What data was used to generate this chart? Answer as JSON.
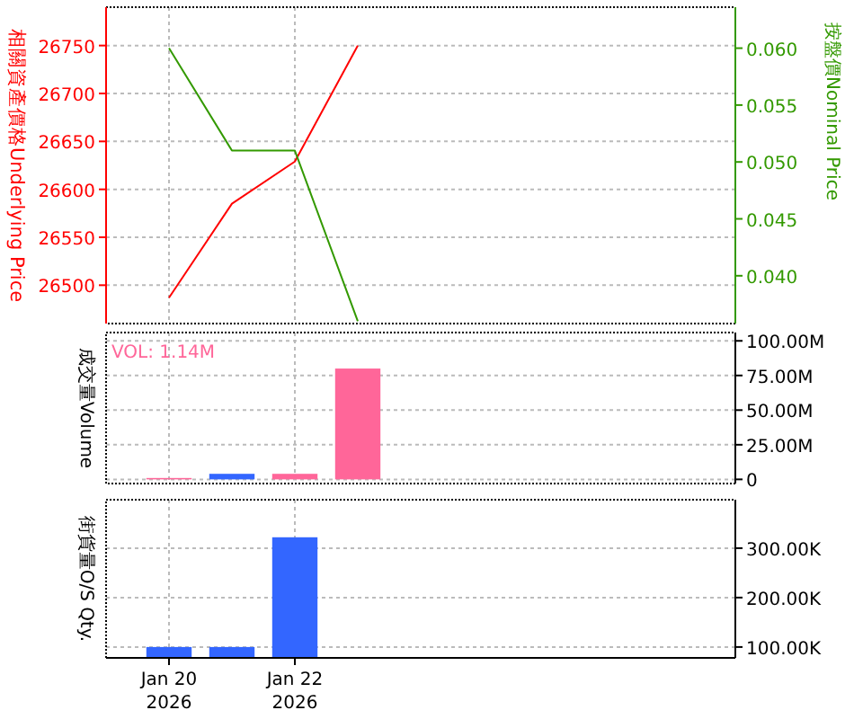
{
  "chart_data": [
    {
      "type": "line",
      "ylabel": "相關資產價格Underlying Price",
      "y2label": "按盤價Nominal Price",
      "x": [
        "2026-01-20",
        "2026-01-21",
        "2026-01-22",
        "2026-01-23"
      ],
      "series": [
        {
          "color": "#ff0000",
          "values": [
            26487,
            26585,
            26629,
            26750
          ]
        },
        {
          "color": "#339900",
          "axis": "y2",
          "values": [
            0.06,
            0.051,
            0.051,
            0.036
          ]
        }
      ],
      "xlim": [
        "2026-01-19",
        "2026-01-29"
      ],
      "xticks": [
        {
          "value": "2026-01-20",
          "label": null
        },
        {
          "value": "2026-01-22",
          "label": null
        }
      ],
      "ylim": [
        26460,
        26790
      ],
      "yticks": [
        26500,
        26550,
        26600,
        26650,
        26700,
        26750
      ],
      "y2lim": [
        0.0358,
        0.0636
      ],
      "y2ticks": [
        {
          "value": 0.04,
          "label": "0.040"
        },
        {
          "value": 0.045,
          "label": "0.045"
        },
        {
          "value": 0.05,
          "label": "0.050"
        },
        {
          "value": 0.055,
          "label": "0.055"
        },
        {
          "value": 0.06,
          "label": "0.060"
        }
      ],
      "grid": true,
      "tick_labels": "y"
    },
    {
      "type": "bar",
      "ylabel": "成交量Volume",
      "annotations": [
        "VOL: 1.14M"
      ],
      "x": [
        "2026-01-20",
        "2026-01-21",
        "2026-01-22",
        "2026-01-23"
      ],
      "series": [
        {
          "axis": "y2",
          "values": [
            1000000,
            4000000,
            4000000,
            80000000
          ],
          "colors": [
            "#ff6699",
            "#3366ff",
            "#ff6699",
            "#ff6699"
          ]
        }
      ],
      "xlim": [
        "2026-01-19",
        "2026-01-29"
      ],
      "xticks": [
        {
          "value": "2026-01-20",
          "label": null
        },
        {
          "value": "2026-01-22",
          "label": null
        }
      ],
      "y2lim": [
        -3000000,
        106000000
      ],
      "y2ticks": [
        {
          "value": 0,
          "label": "0"
        },
        {
          "value": 25000000,
          "label": "25.00M"
        },
        {
          "value": 50000000,
          "label": "50.00M"
        },
        {
          "value": 75000000,
          "label": "75.00M"
        },
        {
          "value": 100000000,
          "label": "100.00M"
        }
      ],
      "grid": true,
      "tick_labels": "y"
    },
    {
      "type": "bar",
      "ylabel": "街貨量O/S Qty.",
      "x": [
        "2026-01-20",
        "2026-01-21",
        "2026-01-22"
      ],
      "series": [
        {
          "axis": "y2",
          "values": [
            100000,
            100000,
            322000
          ],
          "colors": [
            "#3366ff",
            "#3366ff",
            "#3366ff"
          ]
        }
      ],
      "xlim": [
        "2026-01-19",
        "2026-01-29"
      ],
      "xticks": [
        {
          "value": "2026-01-20",
          "label": "Jan 20\n2026"
        },
        {
          "value": "2026-01-22",
          "label": "Jan 22\n2026"
        }
      ],
      "y2lim": [
        78000,
        398000
      ],
      "y2ticks": [
        {
          "value": 100000,
          "label": "100.00K"
        },
        {
          "value": 200000,
          "label": "200.00K"
        },
        {
          "value": 300000,
          "label": "300.00K"
        }
      ],
      "grid": true
    }
  ]
}
